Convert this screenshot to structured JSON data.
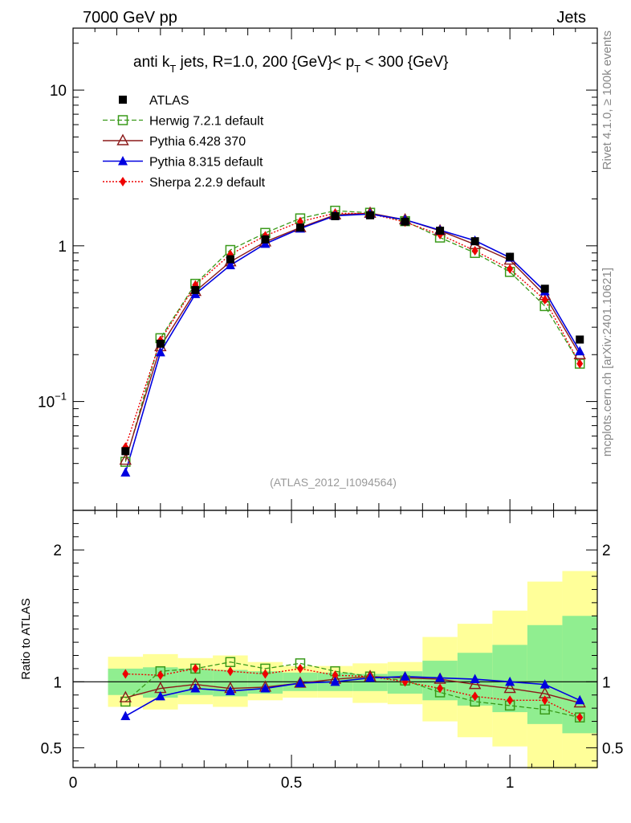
{
  "header": {
    "left": "7000 GeV pp",
    "right": "Jets"
  },
  "plot": {
    "title_pre": "anti k",
    "title_sub": "T",
    "title_mid": " jets, R=1.0,  200 {GeV}< p",
    "title_sub2": "T",
    "title_post": " < 300 {GeV}",
    "analysis_id": "(ATLAS_2012_I1094564)"
  },
  "side_text": {
    "rivet": "Rivet 4.1.0, ≥ 100k events",
    "mcplots": "mcplots.cern.ch [arXiv:2401.10621]"
  },
  "ratio_ylabel": "Ratio to ATLAS",
  "colors": {
    "data": "#000000",
    "herwig": "#3a9a1a",
    "pythia6": "#8b1a1a",
    "pythia8": "#0000e0",
    "sherpa": "#ee0000",
    "band_inner": "#90ee90",
    "band_outer": "#ffff99"
  },
  "chart_data": [
    {
      "type": "line",
      "panel": "main",
      "yscale": "log",
      "ylim": [
        0.02,
        25
      ],
      "xlim": [
        0,
        1.2
      ],
      "y_ticks": [
        {
          "value": 10,
          "base": "10",
          "exp": ""
        },
        {
          "value": 1,
          "base": "1",
          "exp": ""
        },
        {
          "value": 0.1,
          "base": "10",
          "exp": "−1"
        }
      ],
      "x": [
        0.12,
        0.2,
        0.28,
        0.36,
        0.44,
        0.52,
        0.6,
        0.68,
        0.76,
        0.84,
        0.92,
        1.0,
        1.08,
        1.16
      ],
      "series": [
        {
          "name": "ATLAS",
          "key": "data",
          "values": [
            0.048,
            0.235,
            0.52,
            0.82,
            1.1,
            1.31,
            1.55,
            1.57,
            1.43,
            1.25,
            1.07,
            0.85,
            0.53,
            0.25
          ]
        },
        {
          "name": "Herwig 7.2.1 default",
          "key": "herwig",
          "values": [
            0.041,
            0.255,
            0.57,
            0.94,
            1.21,
            1.5,
            1.68,
            1.63,
            1.44,
            1.13,
            0.9,
            0.68,
            0.41,
            0.175
          ]
        },
        {
          "name": "Pythia 6.428 370",
          "key": "pythia6",
          "values": [
            0.042,
            0.225,
            0.51,
            0.79,
            1.06,
            1.31,
            1.58,
            1.62,
            1.47,
            1.25,
            1.02,
            0.81,
            0.48,
            0.2
          ]
        },
        {
          "name": "Pythia 8.315 default",
          "key": "pythia8",
          "values": [
            0.035,
            0.207,
            0.49,
            0.75,
            1.03,
            1.29,
            1.56,
            1.6,
            1.47,
            1.26,
            1.08,
            0.84,
            0.51,
            0.21
          ]
        },
        {
          "name": "Sherpa 2.2.9 default",
          "key": "sherpa",
          "values": [
            0.051,
            0.247,
            0.56,
            0.88,
            1.16,
            1.43,
            1.62,
            1.61,
            1.42,
            1.18,
            0.93,
            0.71,
            0.45,
            0.175
          ]
        }
      ]
    },
    {
      "type": "line",
      "panel": "ratio",
      "ylabel": "Ratio to ATLAS",
      "ylim": [
        0.35,
        2.3
      ],
      "xlim": [
        0,
        1.2
      ],
      "y_ticks": [
        2,
        1,
        0.5
      ],
      "y_tick_labels": [
        "2",
        "1",
        "0.5"
      ],
      "x_ticks": [
        0,
        0.5,
        1
      ],
      "x_tick_labels": [
        "0",
        "0.5",
        "1"
      ],
      "x": [
        0.12,
        0.2,
        0.28,
        0.36,
        0.44,
        0.52,
        0.6,
        0.68,
        0.76,
        0.84,
        0.92,
        1.0,
        1.08,
        1.16
      ],
      "bin_edges": [
        0.08,
        0.16,
        0.24,
        0.32,
        0.4,
        0.48,
        0.56,
        0.64,
        0.72,
        0.8,
        0.88,
        0.96,
        1.04,
        1.12,
        1.2
      ],
      "band_inner": [
        [
          0.9,
          1.1
        ],
        [
          0.88,
          1.11
        ],
        [
          0.9,
          1.1
        ],
        [
          0.89,
          1.09
        ],
        [
          0.91,
          1.08
        ],
        [
          0.93,
          1.07
        ],
        [
          0.93,
          1.07
        ],
        [
          0.93,
          1.06
        ],
        [
          0.91,
          1.08
        ],
        [
          0.86,
          1.16
        ],
        [
          0.82,
          1.22
        ],
        [
          0.77,
          1.28
        ],
        [
          0.68,
          1.43
        ],
        [
          0.61,
          1.5
        ]
      ],
      "band_outer": [
        [
          0.81,
          1.19
        ],
        [
          0.79,
          1.21
        ],
        [
          0.83,
          1.18
        ],
        [
          0.81,
          1.2
        ],
        [
          0.86,
          1.15
        ],
        [
          0.88,
          1.12
        ],
        [
          0.88,
          1.12
        ],
        [
          0.84,
          1.14
        ],
        [
          0.83,
          1.15
        ],
        [
          0.7,
          1.34
        ],
        [
          0.58,
          1.44
        ],
        [
          0.51,
          1.54
        ],
        [
          0.34,
          1.76
        ],
        [
          0.34,
          1.84
        ]
      ],
      "series": [
        {
          "name": "Herwig 7.2.1 default",
          "key": "herwig",
          "values": [
            0.85,
            1.08,
            1.1,
            1.15,
            1.1,
            1.14,
            1.08,
            1.04,
            1.01,
            0.92,
            0.85,
            0.82,
            0.79,
            0.73
          ]
        },
        {
          "name": "Pythia 6.428 370",
          "key": "pythia6",
          "values": [
            0.88,
            0.95,
            0.98,
            0.95,
            0.96,
            0.99,
            1.02,
            1.04,
            1.03,
            1.02,
            0.98,
            0.95,
            0.91,
            0.84
          ]
        },
        {
          "name": "Pythia 8.315 default",
          "key": "pythia8",
          "values": [
            0.74,
            0.89,
            0.95,
            0.93,
            0.95,
            0.99,
            1.0,
            1.03,
            1.04,
            1.03,
            1.02,
            1.0,
            0.98,
            0.86
          ]
        },
        {
          "name": "Sherpa 2.2.9 default",
          "key": "sherpa",
          "values": [
            1.06,
            1.05,
            1.1,
            1.08,
            1.06,
            1.1,
            1.05,
            1.04,
            1.0,
            0.95,
            0.89,
            0.86,
            0.86,
            0.73
          ]
        }
      ]
    }
  ]
}
